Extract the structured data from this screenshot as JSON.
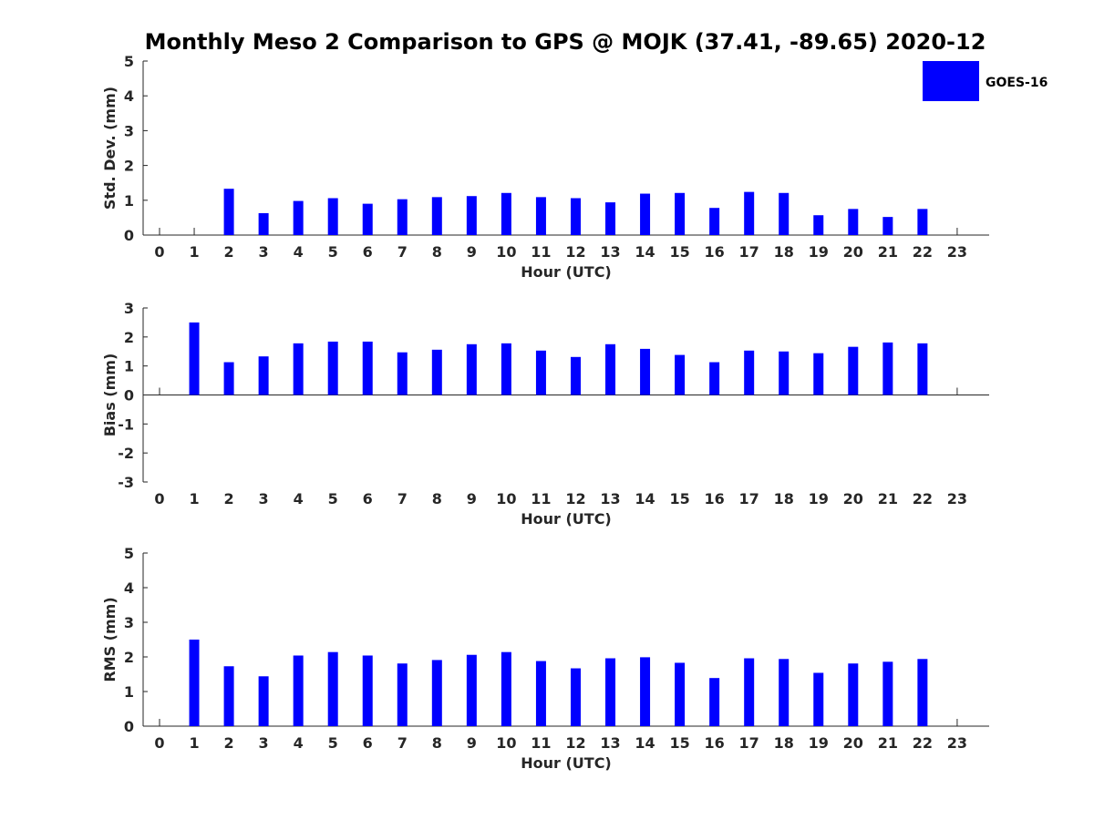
{
  "title": "Monthly Meso 2 Comparison to GPS @ MOJK (37.41, -89.65) 2020-12",
  "bar_color": "#0000ff",
  "legend": {
    "label": "GOES-16",
    "placement": "top-right",
    "color": "#0000ff"
  },
  "chart_data": [
    {
      "type": "bar",
      "categories": [
        "0",
        "1",
        "2",
        "3",
        "4",
        "5",
        "6",
        "7",
        "8",
        "9",
        "10",
        "11",
        "12",
        "13",
        "14",
        "15",
        "16",
        "17",
        "18",
        "19",
        "20",
        "21",
        "22",
        "23"
      ],
      "series": [
        {
          "name": "GOES-16",
          "values": [
            null,
            null,
            1.33,
            0.63,
            0.98,
            1.06,
            0.9,
            1.03,
            1.09,
            1.12,
            1.21,
            1.09,
            1.06,
            0.94,
            1.19,
            1.21,
            0.78,
            1.24,
            1.21,
            0.57,
            0.75,
            0.52,
            0.75,
            null
          ]
        }
      ],
      "xlabel": "Hour (UTC)",
      "ylabel": "Std. Dev. (mm)",
      "ylim": [
        0,
        5
      ],
      "yticks": [
        "0",
        "1",
        "2",
        "3",
        "4",
        "5"
      ]
    },
    {
      "type": "bar",
      "categories": [
        "0",
        "1",
        "2",
        "3",
        "4",
        "5",
        "6",
        "7",
        "8",
        "9",
        "10",
        "11",
        "12",
        "13",
        "14",
        "15",
        "16",
        "17",
        "18",
        "19",
        "20",
        "21",
        "22",
        "23"
      ],
      "series": [
        {
          "name": "GOES-16",
          "values": [
            null,
            2.5,
            1.13,
            1.33,
            1.78,
            1.84,
            1.84,
            1.47,
            1.56,
            1.75,
            1.78,
            1.53,
            1.31,
            1.75,
            1.59,
            1.38,
            1.13,
            1.53,
            1.5,
            1.44,
            1.66,
            1.81,
            1.78,
            null
          ]
        }
      ],
      "xlabel": "Hour (UTC)",
      "ylabel": "Bias (mm)",
      "ylim": [
        -3,
        3
      ],
      "yticks": [
        "-3",
        "-2",
        "-1",
        "0",
        "1",
        "2",
        "3"
      ]
    },
    {
      "type": "bar",
      "categories": [
        "0",
        "1",
        "2",
        "3",
        "4",
        "5",
        "6",
        "7",
        "8",
        "9",
        "10",
        "11",
        "12",
        "13",
        "14",
        "15",
        "16",
        "17",
        "18",
        "19",
        "20",
        "21",
        "22",
        "23"
      ],
      "series": [
        {
          "name": "GOES-16",
          "values": [
            null,
            2.5,
            1.73,
            1.44,
            2.04,
            2.14,
            2.04,
            1.81,
            1.91,
            2.06,
            2.14,
            1.88,
            1.67,
            1.96,
            1.99,
            1.83,
            1.39,
            1.96,
            1.94,
            1.54,
            1.81,
            1.86,
            1.94,
            null
          ]
        }
      ],
      "xlabel": "Hour (UTC)",
      "ylabel": "RMS (mm)",
      "ylim": [
        0,
        5
      ],
      "yticks": [
        "0",
        "1",
        "2",
        "3",
        "4",
        "5"
      ]
    }
  ]
}
